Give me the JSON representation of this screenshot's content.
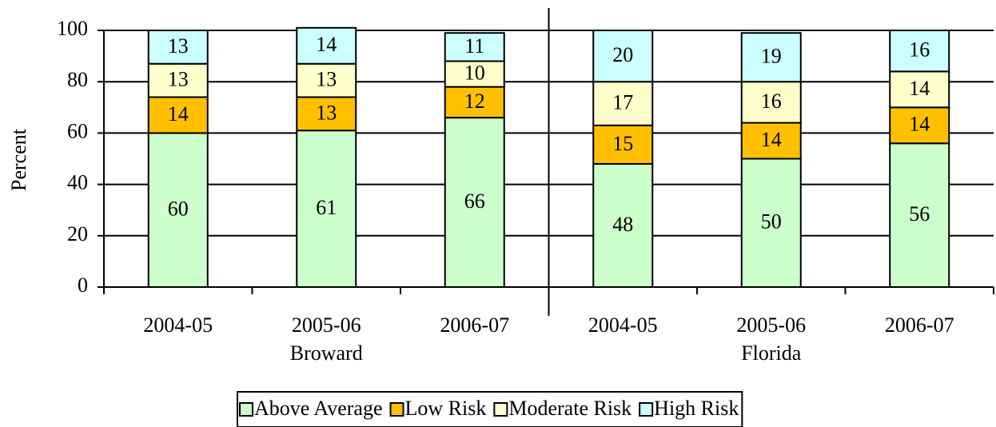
{
  "chart_data": {
    "type": "stacked-bar",
    "categories": [
      "2004-05",
      "2005-06",
      "2006-07",
      "2004-05",
      "2005-06",
      "2006-07"
    ],
    "groups": [
      "Broward",
      "Florida"
    ],
    "ylabel": "Percent",
    "series": [
      {
        "name": "Above Average",
        "color": "#ccffcc",
        "values": [
          60,
          61,
          66,
          48,
          50,
          56
        ]
      },
      {
        "name": "Low Risk",
        "color": "#ffc000",
        "values": [
          14,
          13,
          12,
          15,
          14,
          14
        ]
      },
      {
        "name": "Moderate Risk",
        "color": "#ffffcc",
        "values": [
          13,
          13,
          10,
          17,
          16,
          14
        ]
      },
      {
        "name": "High Risk",
        "color": "#ccffff",
        "values": [
          13,
          14,
          11,
          20,
          19,
          16
        ]
      }
    ],
    "ylim": [
      0,
      100
    ],
    "yticks": [
      0,
      20,
      40,
      60,
      80,
      100
    ],
    "grid": true,
    "legend": "bottom"
  }
}
